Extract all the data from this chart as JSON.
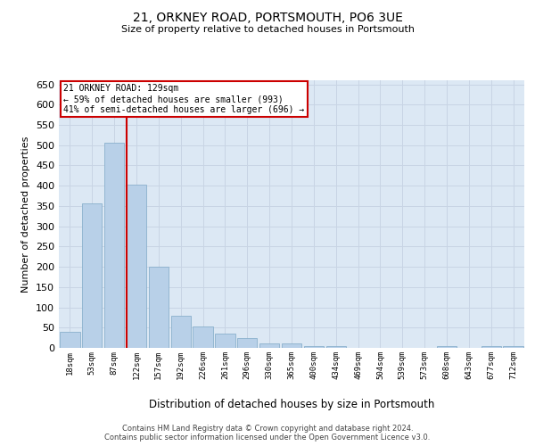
{
  "title": "21, ORKNEY ROAD, PORTSMOUTH, PO6 3UE",
  "subtitle": "Size of property relative to detached houses in Portsmouth",
  "xlabel": "Distribution of detached houses by size in Portsmouth",
  "ylabel": "Number of detached properties",
  "footer_line1": "Contains HM Land Registry data © Crown copyright and database right 2024.",
  "footer_line2": "Contains public sector information licensed under the Open Government Licence v3.0.",
  "categories": [
    "18sqm",
    "53sqm",
    "87sqm",
    "122sqm",
    "157sqm",
    "192sqm",
    "226sqm",
    "261sqm",
    "296sqm",
    "330sqm",
    "365sqm",
    "400sqm",
    "434sqm",
    "469sqm",
    "504sqm",
    "539sqm",
    "573sqm",
    "608sqm",
    "643sqm",
    "677sqm",
    "712sqm"
  ],
  "values": [
    40,
    357,
    507,
    402,
    201,
    80,
    53,
    35,
    25,
    10,
    10,
    5,
    5,
    0,
    0,
    0,
    0,
    5,
    0,
    5,
    5
  ],
  "bar_color": "#b8d0e8",
  "bar_edge_color": "#8ab0cc",
  "grid_color": "#c8d4e4",
  "background_color": "#dce8f4",
  "annotation_box_color": "#cc0000",
  "annotation_text_line1": "21 ORKNEY ROAD: 129sqm",
  "annotation_text_line2": "← 59% of detached houses are smaller (993)",
  "annotation_text_line3": "41% of semi-detached houses are larger (696) →",
  "vline_x_index": 3,
  "vline_color": "#cc0000",
  "ylim": [
    0,
    660
  ],
  "yticks": [
    0,
    50,
    100,
    150,
    200,
    250,
    300,
    350,
    400,
    450,
    500,
    550,
    600,
    650
  ]
}
